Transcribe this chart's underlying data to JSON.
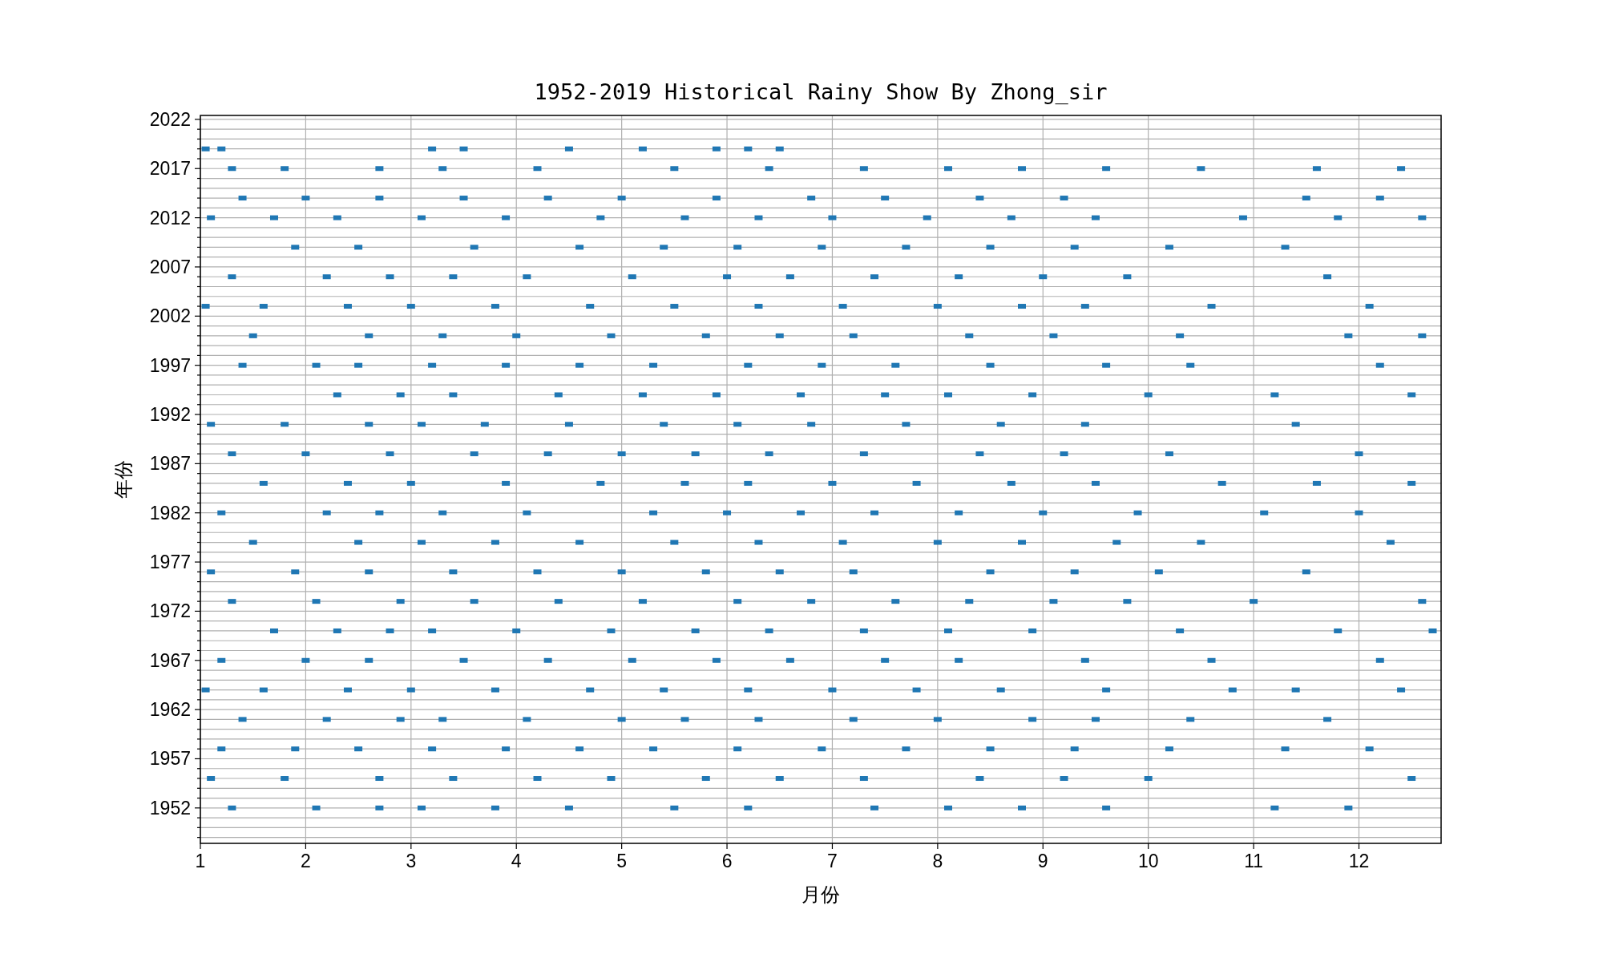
{
  "chart_data": {
    "type": "scatter",
    "title": "1952-2019 Historical Rainy Show By Zhong_sir",
    "xlabel": "月份",
    "ylabel": "年份",
    "marker": "square",
    "grid": true,
    "xlim": [
      1,
      12.78
    ],
    "xticks": [
      1,
      2,
      3,
      4,
      5,
      6,
      7,
      8,
      9,
      10,
      11,
      12
    ],
    "ylim": [
      1948.4,
      2022.4
    ],
    "yticks": [
      {
        "value": 1949,
        "label": null
      },
      {
        "value": 1950,
        "label": null
      },
      {
        "value": 1951,
        "label": null
      },
      1952,
      {
        "value": 1953,
        "label": null
      },
      {
        "value": 1954,
        "label": null
      },
      {
        "value": 1955,
        "label": null
      },
      {
        "value": 1956,
        "label": null
      },
      1957,
      {
        "value": 1958,
        "label": null
      },
      {
        "value": 1959,
        "label": null
      },
      {
        "value": 1960,
        "label": null
      },
      {
        "value": 1961,
        "label": null
      },
      1962,
      {
        "value": 1963,
        "label": null
      },
      {
        "value": 1964,
        "label": null
      },
      {
        "value": 1965,
        "label": null
      },
      {
        "value": 1966,
        "label": null
      },
      1967,
      {
        "value": 1968,
        "label": null
      },
      {
        "value": 1969,
        "label": null
      },
      {
        "value": 1970,
        "label": null
      },
      {
        "value": 1971,
        "label": null
      },
      1972,
      {
        "value": 1973,
        "label": null
      },
      {
        "value": 1974,
        "label": null
      },
      {
        "value": 1975,
        "label": null
      },
      {
        "value": 1976,
        "label": null
      },
      1977,
      {
        "value": 1978,
        "label": null
      },
      {
        "value": 1979,
        "label": null
      },
      {
        "value": 1980,
        "label": null
      },
      {
        "value": 1981,
        "label": null
      },
      1982,
      {
        "value": 1983,
        "label": null
      },
      {
        "value": 1984,
        "label": null
      },
      {
        "value": 1985,
        "label": null
      },
      {
        "value": 1986,
        "label": null
      },
      1987,
      {
        "value": 1988,
        "label": null
      },
      {
        "value": 1989,
        "label": null
      },
      {
        "value": 1990,
        "label": null
      },
      {
        "value": 1991,
        "label": null
      },
      1992,
      {
        "value": 1993,
        "label": null
      },
      {
        "value": 1994,
        "label": null
      },
      {
        "value": 1995,
        "label": null
      },
      {
        "value": 1996,
        "label": null
      },
      1997,
      {
        "value": 1998,
        "label": null
      },
      {
        "value": 1999,
        "label": null
      },
      {
        "value": 2000,
        "label": null
      },
      {
        "value": 2001,
        "label": null
      },
      2002,
      {
        "value": 2003,
        "label": null
      },
      {
        "value": 2004,
        "label": null
      },
      {
        "value": 2005,
        "label": null
      },
      {
        "value": 2006,
        "label": null
      },
      2007,
      {
        "value": 2008,
        "label": null
      },
      {
        "value": 2009,
        "label": null
      },
      {
        "value": 2010,
        "label": null
      },
      {
        "value": 2011,
        "label": null
      },
      2012,
      {
        "value": 2013,
        "label": null
      },
      {
        "value": 2014,
        "label": null
      },
      {
        "value": 2015,
        "label": null
      },
      {
        "value": 2016,
        "label": null
      },
      2017,
      {
        "value": 2018,
        "label": null
      },
      {
        "value": 2019,
        "label": null
      },
      {
        "value": 2020,
        "label": null
      },
      {
        "value": 2021,
        "label": null
      },
      2022
    ],
    "series": [
      {
        "color": "#1f77b4",
        "x": [
          1.05,
          1.2,
          3.2,
          3.5,
          4.5,
          5.2,
          5.9,
          6.2,
          6.5
        ],
        "values": [
          2019,
          2019,
          2019,
          2019,
          2019,
          2019,
          2019,
          2019,
          2019
        ]
      },
      {
        "color": "#1f77b4",
        "x": [
          1.3,
          1.8,
          2.7,
          3.3,
          4.2,
          5.5,
          6.4,
          7.3,
          8.1,
          8.8,
          9.6,
          10.5,
          11.6,
          12.4
        ],
        "values": [
          2017,
          2017,
          2017,
          2017,
          2017,
          2017,
          2017,
          2017,
          2017,
          2017,
          2017,
          2017,
          2017,
          2017
        ]
      },
      {
        "color": "#1f77b4",
        "x": [
          1.4,
          2.0,
          2.7,
          3.5,
          4.3,
          5.0,
          5.9,
          6.8,
          7.5,
          8.4,
          9.2,
          11.5,
          12.2
        ],
        "values": [
          2014,
          2014,
          2014,
          2014,
          2014,
          2014,
          2014,
          2014,
          2014,
          2014,
          2014,
          2014,
          2014
        ]
      },
      {
        "color": "#1f77b4",
        "x": [
          1.1,
          1.7,
          2.3,
          3.1,
          3.9,
          4.8,
          5.6,
          6.3,
          7.0,
          7.9,
          8.7,
          9.5,
          10.9,
          11.8,
          12.6
        ],
        "values": [
          2012,
          2012,
          2012,
          2012,
          2012,
          2012,
          2012,
          2012,
          2012,
          2012,
          2012,
          2012,
          2012,
          2012,
          2012
        ]
      },
      {
        "color": "#1f77b4",
        "x": [
          1.9,
          2.5,
          3.6,
          4.6,
          5.4,
          6.1,
          6.9,
          7.7,
          8.5,
          9.3,
          10.2,
          11.3
        ],
        "values": [
          2009,
          2009,
          2009,
          2009,
          2009,
          2009,
          2009,
          2009,
          2009,
          2009,
          2009,
          2009
        ]
      },
      {
        "color": "#1f77b4",
        "x": [
          1.3,
          2.2,
          2.8,
          3.4,
          4.1,
          5.1,
          6.0,
          6.6,
          7.4,
          8.2,
          9.0,
          9.8,
          11.7
        ],
        "values": [
          2006,
          2006,
          2006,
          2006,
          2006,
          2006,
          2006,
          2006,
          2006,
          2006,
          2006,
          2006,
          2006
        ]
      },
      {
        "color": "#1f77b4",
        "x": [
          1.05,
          1.6,
          2.4,
          3.0,
          3.8,
          4.7,
          5.5,
          6.3,
          7.1,
          8.0,
          8.8,
          9.4,
          10.6,
          12.1
        ],
        "values": [
          2003,
          2003,
          2003,
          2003,
          2003,
          2003,
          2003,
          2003,
          2003,
          2003,
          2003,
          2003,
          2003,
          2003
        ]
      },
      {
        "color": "#1f77b4",
        "x": [
          1.5,
          2.6,
          3.3,
          4.0,
          4.9,
          5.8,
          6.5,
          7.2,
          8.3,
          9.1,
          10.3,
          11.9,
          12.6
        ],
        "values": [
          2000,
          2000,
          2000,
          2000,
          2000,
          2000,
          2000,
          2000,
          2000,
          2000,
          2000,
          2000,
          2000
        ]
      },
      {
        "color": "#1f77b4",
        "x": [
          1.4,
          2.1,
          2.5,
          3.2,
          3.9,
          4.6,
          5.3,
          6.2,
          6.9,
          7.6,
          8.5,
          9.6,
          10.4,
          12.2
        ],
        "values": [
          1997,
          1997,
          1997,
          1997,
          1997,
          1997,
          1997,
          1997,
          1997,
          1997,
          1997,
          1997,
          1997,
          1997
        ]
      },
      {
        "color": "#1f77b4",
        "x": [
          2.3,
          2.9,
          3.4,
          4.4,
          5.2,
          5.9,
          6.7,
          7.5,
          8.1,
          8.9,
          10.0,
          11.2,
          12.5
        ],
        "values": [
          1994,
          1994,
          1994,
          1994,
          1994,
          1994,
          1994,
          1994,
          1994,
          1994,
          1994,
          1994,
          1994
        ]
      },
      {
        "color": "#1f77b4",
        "x": [
          1.1,
          1.8,
          2.6,
          3.1,
          3.7,
          4.5,
          5.4,
          6.1,
          6.8,
          7.7,
          8.6,
          9.4,
          11.4
        ],
        "values": [
          1991,
          1991,
          1991,
          1991,
          1991,
          1991,
          1991,
          1991,
          1991,
          1991,
          1991,
          1991,
          1991
        ]
      },
      {
        "color": "#1f77b4",
        "x": [
          1.3,
          2.0,
          2.8,
          3.6,
          4.3,
          5.0,
          5.7,
          6.4,
          7.3,
          8.4,
          9.2,
          10.2,
          12.0
        ],
        "values": [
          1988,
          1988,
          1988,
          1988,
          1988,
          1988,
          1988,
          1988,
          1988,
          1988,
          1988,
          1988,
          1988
        ]
      },
      {
        "color": "#1f77b4",
        "x": [
          1.6,
          2.4,
          3.0,
          3.9,
          4.8,
          5.6,
          6.2,
          7.0,
          7.8,
          8.7,
          9.5,
          10.7,
          11.6,
          12.5
        ],
        "values": [
          1985,
          1985,
          1985,
          1985,
          1985,
          1985,
          1985,
          1985,
          1985,
          1985,
          1985,
          1985,
          1985,
          1985
        ]
      },
      {
        "color": "#1f77b4",
        "x": [
          1.2,
          2.2,
          2.7,
          3.3,
          4.1,
          5.3,
          6.0,
          6.7,
          7.4,
          8.2,
          9.0,
          9.9,
          11.1,
          12.0
        ],
        "values": [
          1982,
          1982,
          1982,
          1982,
          1982,
          1982,
          1982,
          1982,
          1982,
          1982,
          1982,
          1982,
          1982,
          1982
        ]
      },
      {
        "color": "#1f77b4",
        "x": [
          1.5,
          2.5,
          3.1,
          3.8,
          4.6,
          5.5,
          6.3,
          7.1,
          8.0,
          8.8,
          9.7,
          10.5,
          12.3
        ],
        "values": [
          1979,
          1979,
          1979,
          1979,
          1979,
          1979,
          1979,
          1979,
          1979,
          1979,
          1979,
          1979,
          1979
        ]
      },
      {
        "color": "#1f77b4",
        "x": [
          1.1,
          1.9,
          2.6,
          3.4,
          4.2,
          5.0,
          5.8,
          6.5,
          7.2,
          8.5,
          9.3,
          10.1,
          11.5
        ],
        "values": [
          1976,
          1976,
          1976,
          1976,
          1976,
          1976,
          1976,
          1976,
          1976,
          1976,
          1976,
          1976,
          1976
        ]
      },
      {
        "color": "#1f77b4",
        "x": [
          1.3,
          2.1,
          2.9,
          3.6,
          4.4,
          5.2,
          6.1,
          6.8,
          7.6,
          8.3,
          9.1,
          9.8,
          11.0,
          12.6
        ],
        "values": [
          1973,
          1973,
          1973,
          1973,
          1973,
          1973,
          1973,
          1973,
          1973,
          1973,
          1973,
          1973,
          1973,
          1973
        ]
      },
      {
        "color": "#1f77b4",
        "x": [
          1.7,
          2.3,
          2.8,
          3.2,
          4.0,
          4.9,
          5.7,
          6.4,
          7.3,
          8.1,
          8.9,
          10.3,
          11.8,
          12.7
        ],
        "values": [
          1970,
          1970,
          1970,
          1970,
          1970,
          1970,
          1970,
          1970,
          1970,
          1970,
          1970,
          1970,
          1970,
          1970
        ]
      },
      {
        "color": "#1f77b4",
        "x": [
          1.2,
          2.0,
          2.6,
          3.5,
          4.3,
          5.1,
          5.9,
          6.6,
          7.5,
          8.2,
          9.4,
          10.6,
          12.2
        ],
        "values": [
          1967,
          1967,
          1967,
          1967,
          1967,
          1967,
          1967,
          1967,
          1967,
          1967,
          1967,
          1967,
          1967
        ]
      },
      {
        "color": "#1f77b4",
        "x": [
          1.05,
          1.6,
          2.4,
          3.0,
          3.8,
          4.7,
          5.4,
          6.2,
          7.0,
          7.8,
          8.6,
          9.6,
          10.8,
          11.4,
          12.4
        ],
        "values": [
          1964,
          1964,
          1964,
          1964,
          1964,
          1964,
          1964,
          1964,
          1964,
          1964,
          1964,
          1964,
          1964,
          1964,
          1964
        ]
      },
      {
        "color": "#1f77b4",
        "x": [
          1.4,
          2.2,
          2.9,
          3.3,
          4.1,
          5.0,
          5.6,
          6.3,
          7.2,
          8.0,
          8.9,
          9.5,
          10.4,
          11.7
        ],
        "values": [
          1961,
          1961,
          1961,
          1961,
          1961,
          1961,
          1961,
          1961,
          1961,
          1961,
          1961,
          1961,
          1961,
          1961
        ]
      },
      {
        "color": "#1f77b4",
        "x": [
          1.2,
          1.9,
          2.5,
          3.2,
          3.9,
          4.6,
          5.3,
          6.1,
          6.9,
          7.7,
          8.5,
          9.3,
          10.2,
          11.3,
          12.1
        ],
        "values": [
          1958,
          1958,
          1958,
          1958,
          1958,
          1958,
          1958,
          1958,
          1958,
          1958,
          1958,
          1958,
          1958,
          1958,
          1958
        ]
      },
      {
        "color": "#1f77b4",
        "x": [
          1.1,
          1.8,
          2.7,
          3.4,
          4.2,
          4.9,
          5.8,
          6.5,
          7.3,
          8.4,
          9.2,
          10.0,
          12.5
        ],
        "values": [
          1955,
          1955,
          1955,
          1955,
          1955,
          1955,
          1955,
          1955,
          1955,
          1955,
          1955,
          1955,
          1955
        ]
      },
      {
        "color": "#1f77b4",
        "x": [
          1.3,
          2.1,
          2.7,
          3.1,
          3.8,
          4.5,
          5.5,
          6.2,
          7.4,
          8.1,
          8.8,
          9.6,
          11.2,
          11.9
        ],
        "values": [
          1952,
          1952,
          1952,
          1952,
          1952,
          1952,
          1952,
          1952,
          1952,
          1952,
          1952,
          1952,
          1952,
          1952
        ]
      }
    ]
  }
}
